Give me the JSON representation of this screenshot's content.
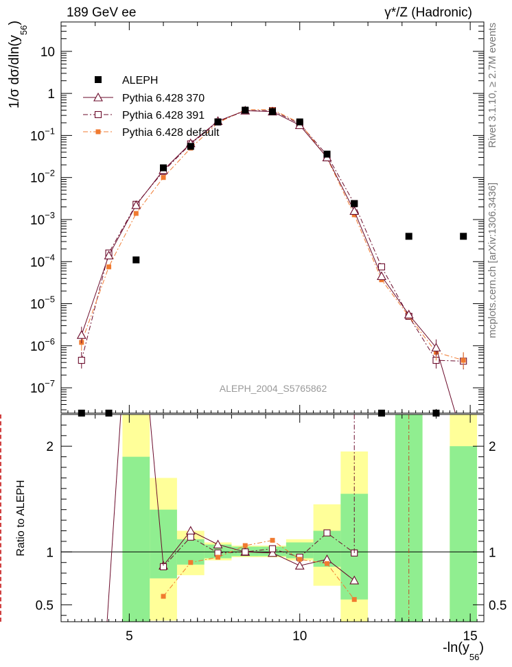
{
  "header": {
    "left_title": "189 GeV ee",
    "right_title": "γ*/Z (Hadronic)"
  },
  "side_labels": {
    "rivet": "Rivet 3.1.10, ≥ 2.7M events",
    "mcplots": "mcplots.cern.ch [arXiv:1306.3436]"
  },
  "analysis_id": "ALEPH_2004_S5765862",
  "main_plot": {
    "ylabel_main": "1/σ  dσ/dln(y",
    "ylabel_sub": "56",
    "ylabel_close": ")",
    "yscale": "log",
    "ylim": [
      2.5e-08,
      50
    ],
    "y_ticks": [
      {
        "v": 1e-07,
        "base": "10",
        "exp": "−7"
      },
      {
        "v": 1e-06,
        "base": "10",
        "exp": "−6"
      },
      {
        "v": 1e-05,
        "base": "10",
        "exp": "−5"
      },
      {
        "v": 0.0001,
        "base": "10",
        "exp": "−4"
      },
      {
        "v": 0.001,
        "base": "10",
        "exp": "−3"
      },
      {
        "v": 0.01,
        "base": "10",
        "exp": "−2"
      },
      {
        "v": 0.1,
        "base": "10",
        "exp": "−1"
      },
      {
        "v": 1,
        "base": "1",
        "exp": ""
      },
      {
        "v": 10,
        "base": "10",
        "exp": ""
      }
    ]
  },
  "ratio_plot": {
    "ylabel": "Ratio to ALEPH",
    "ylim": [
      0.34,
      2.3
    ],
    "y_ticks": [
      {
        "v": 0.5,
        "label": "0.5"
      },
      {
        "v": 1,
        "label": "1"
      },
      {
        "v": 2,
        "label": "2"
      }
    ]
  },
  "x_axis": {
    "label_main": "-ln(y",
    "label_sub": "56",
    "label_close": ")",
    "xlim": [
      3.0,
      15.4
    ],
    "ticks": [
      {
        "v": 5,
        "label": "5"
      },
      {
        "v": 10,
        "label": "10"
      },
      {
        "v": 15,
        "label": "15"
      }
    ]
  },
  "legend": [
    {
      "name": "ALEPH",
      "color": "#000000",
      "marker": "filled-square",
      "line": "none"
    },
    {
      "name": "Pythia 6.428 370",
      "color": "#6a0a2a",
      "marker": "open-triangle",
      "line": "solid"
    },
    {
      "name": "Pythia 6.428 391",
      "color": "#6a0a2a",
      "marker": "open-square",
      "line": "dash-dot"
    },
    {
      "name": "Pythia 6.428 default",
      "color": "#f07a30",
      "marker": "filled-square",
      "line": "dash-dot"
    }
  ],
  "chart_data": {
    "type": "scatter",
    "xlabel": "-ln(y56)",
    "ylabel": "1/σ dσ/dln(y56)",
    "ratio_ylabel": "Ratio to ALEPH",
    "yscale": "log",
    "x": [
      3.6,
      4.4,
      5.2,
      6.0,
      6.8,
      7.6,
      8.4,
      9.2,
      10.0,
      10.8,
      11.6,
      12.4,
      13.2,
      14.0,
      14.8
    ],
    "bin_edges": [
      3.2,
      4.0,
      4.8,
      5.6,
      6.4,
      7.2,
      8.0,
      8.8,
      9.6,
      10.4,
      11.2,
      12.0,
      12.8,
      13.6,
      14.4,
      15.2
    ],
    "series": [
      {
        "name": "ALEPH",
        "values": [
          0,
          0,
          0.00011,
          0.017,
          0.055,
          0.21,
          0.4,
          0.37,
          0.21,
          0.036,
          0.0024,
          0,
          0.0004,
          0,
          0.0004
        ]
      },
      {
        "name": "Pythia 6.428 370",
        "values": [
          1.8e-06,
          0.00014,
          0.0022,
          0.015,
          0.065,
          0.22,
          0.39,
          0.37,
          0.175,
          0.03,
          0.0016,
          4.5e-05,
          5.5e-06,
          9e-07,
          null
        ]
      },
      {
        "name": "Pythia 6.428 391",
        "values": [
          4.5e-07,
          0.00016,
          0.0023,
          0.014,
          0.063,
          0.21,
          0.39,
          0.39,
          0.19,
          0.034,
          0.0024,
          7.5e-05,
          5e-06,
          4.5e-07,
          4.3e-07
        ]
      },
      {
        "name": "Pythia 6.428 default",
        "values": [
          1.2e-06,
          7.5e-05,
          0.0014,
          0.01,
          0.05,
          0.2,
          0.41,
          0.41,
          0.2,
          0.029,
          0.0013,
          3.7e-05,
          5e-06,
          7e-07,
          4.5e-07
        ]
      }
    ],
    "ratio_series": [
      {
        "name": "Pythia 6.428 370",
        "x": [
          6.0,
          6.8,
          7.6,
          8.4,
          9.2,
          10.0,
          10.8,
          11.6
        ],
        "values": [
          0.87,
          1.2,
          1.07,
          1.0,
          0.99,
          0.87,
          0.93,
          0.73
        ]
      },
      {
        "name": "Pythia 6.428 391",
        "x": [
          6.0,
          6.8,
          7.6,
          8.4,
          9.2,
          10.0,
          10.8,
          11.6
        ],
        "values": [
          0.86,
          1.14,
          0.99,
          1.0,
          1.03,
          0.95,
          1.18,
          0.99
        ]
      },
      {
        "name": "Pythia 6.428 default",
        "x": [
          6.0,
          6.8,
          7.6,
          8.4,
          9.2,
          10.0,
          10.8,
          11.6
        ],
        "values": [
          0.58,
          0.9,
          0.95,
          1.06,
          1.11,
          0.93,
          0.89,
          0.55
        ]
      }
    ],
    "uncertainty_bands": {
      "stat": {
        "color": "#90ee90",
        "x": [
          4.8,
          6.0,
          6.8,
          7.6,
          8.4,
          9.2,
          10.0,
          10.8,
          11.6,
          13.2,
          14.8
        ],
        "low": [
          0.0,
          0.75,
          0.88,
          0.94,
          0.96,
          0.96,
          0.94,
          0.86,
          0.55,
          0.0,
          0.0
        ],
        "high": [
          1.9,
          1.4,
          1.12,
          1.07,
          1.05,
          1.05,
          1.09,
          1.2,
          1.55,
          2.3,
          2.0
        ]
      },
      "total": {
        "color": "#ffff99",
        "x": [
          4.8,
          6.0,
          6.8,
          7.6,
          8.4,
          9.2,
          10.0,
          10.8,
          11.6,
          13.2,
          14.8
        ],
        "low": [
          0.0,
          0.35,
          0.78,
          0.92,
          0.95,
          0.95,
          0.92,
          0.68,
          0.34,
          0.0,
          0.0
        ],
        "high": [
          2.3,
          1.7,
          1.2,
          1.09,
          1.06,
          1.06,
          1.12,
          1.45,
          1.95,
          2.3,
          2.3
        ]
      }
    }
  }
}
